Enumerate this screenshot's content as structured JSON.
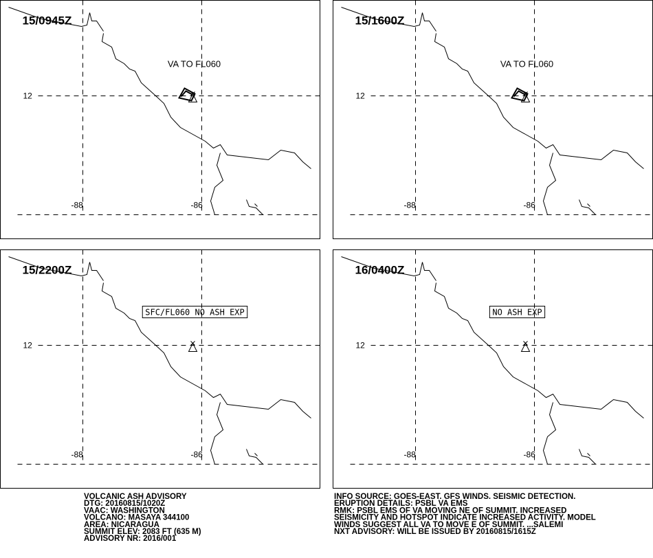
{
  "panels": [
    {
      "time": "15/0945Z",
      "annotation": "VA TO FL060",
      "boxed": false,
      "ash_area": true
    },
    {
      "time": "15/1600Z",
      "annotation": "VA TO FL060",
      "boxed": false,
      "ash_area": true
    },
    {
      "time": "15/2200Z",
      "annotation": "SFC/FL060 NO ASH EXP",
      "boxed": true,
      "ash_area": false
    },
    {
      "time": "16/0400Z",
      "annotation": "NO ASH EXP",
      "boxed": true,
      "ash_area": false
    }
  ],
  "grid_labels": {
    "lat": "12",
    "lon": [
      "-88",
      "-86"
    ]
  },
  "advisory_left": [
    "VOLCANIC ASH ADVISORY",
    "DTG: 20160815/1020Z",
    "VAAC: WASHINGTON",
    "VOLCANO: MASAYA 344100",
    "AREA: NICARAGUA",
    "SUMMIT ELEV: 2083 FT (635 M)",
    "ADVISORY NR: 2016/001"
  ],
  "advisory_right": [
    "INFO SOURCE: GOES-EAST. GFS WINDS. SEISMIC DETECTION.",
    "ERUPTION DETAILS: PSBL VA EMS",
    "RMK: PSBL EMS OF VA MOVING NE OF SUMMIT. INCREASED",
    "SEISMICITY AND HOTSPOT INDICATE INCREASED ACTIVITY. MODEL",
    "WINDS SUGGEST ALL VA TO MOVE E OF SUMMIT. ...SALEMI",
    "NXT ADVISORY: WILL BE ISSUED BY 20160815/1615Z"
  ]
}
